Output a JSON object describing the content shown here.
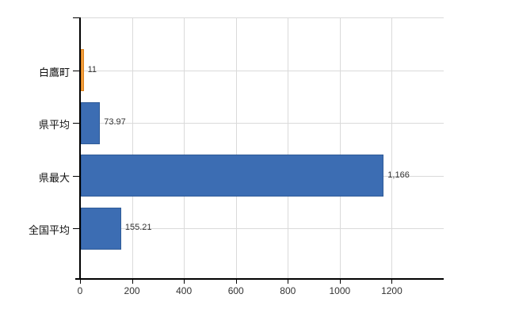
{
  "chart_data": {
    "type": "bar",
    "orientation": "horizontal",
    "title": "",
    "categories": [
      "白鷹町",
      "県平均",
      "県最大",
      "全国平均"
    ],
    "values": [
      11,
      73.97,
      1166,
      155.21
    ],
    "value_labels": [
      "11",
      "73.97",
      "1,166",
      "155.21"
    ],
    "x_tick_labels": [
      "0",
      "200",
      "400",
      "600",
      "800",
      "1000",
      "1200"
    ],
    "x_tick_values": [
      0,
      200,
      400,
      600,
      800,
      1000,
      1200
    ],
    "xlim": [
      0,
      1400
    ],
    "grid": true,
    "legend_position": "none",
    "bar_colors": [
      "#f5a03e",
      "#3c6db3",
      "#3c6db3",
      "#3c6db3"
    ],
    "bar_border_colors": [
      "#d9821f",
      "#305c98",
      "#305c98",
      "#305c98"
    ],
    "axis_color": "#000000",
    "gridline_color": "#dadada",
    "tick_label_color": "#333333",
    "category_label_color": "#111111"
  }
}
